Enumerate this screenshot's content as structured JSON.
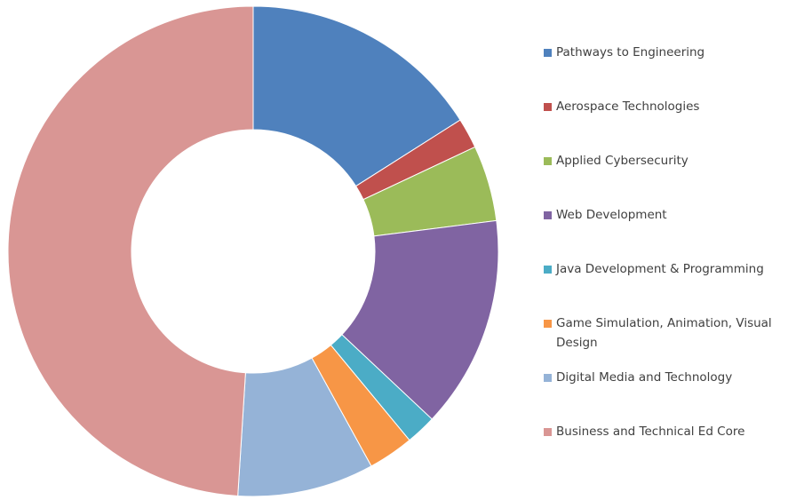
{
  "chart_data": {
    "type": "donut",
    "categories": [
      "Pathways to Engineering",
      "Aerospace Technologies",
      "Applied Cybersecurity",
      "Web Development",
      "Java Development & Programming",
      "Game Simulation, Animation, Visual Design",
      "Digital Media and Technology",
      "Business and Technical Ed Core"
    ],
    "values": [
      16,
      2,
      5,
      14,
      2,
      3,
      9,
      49
    ],
    "colors": [
      "#4F81BD",
      "#C0504D",
      "#9BBB59",
      "#8064A2",
      "#4BACC6",
      "#F79646",
      "#95B3D7",
      "#D99694"
    ],
    "legend": "right"
  }
}
